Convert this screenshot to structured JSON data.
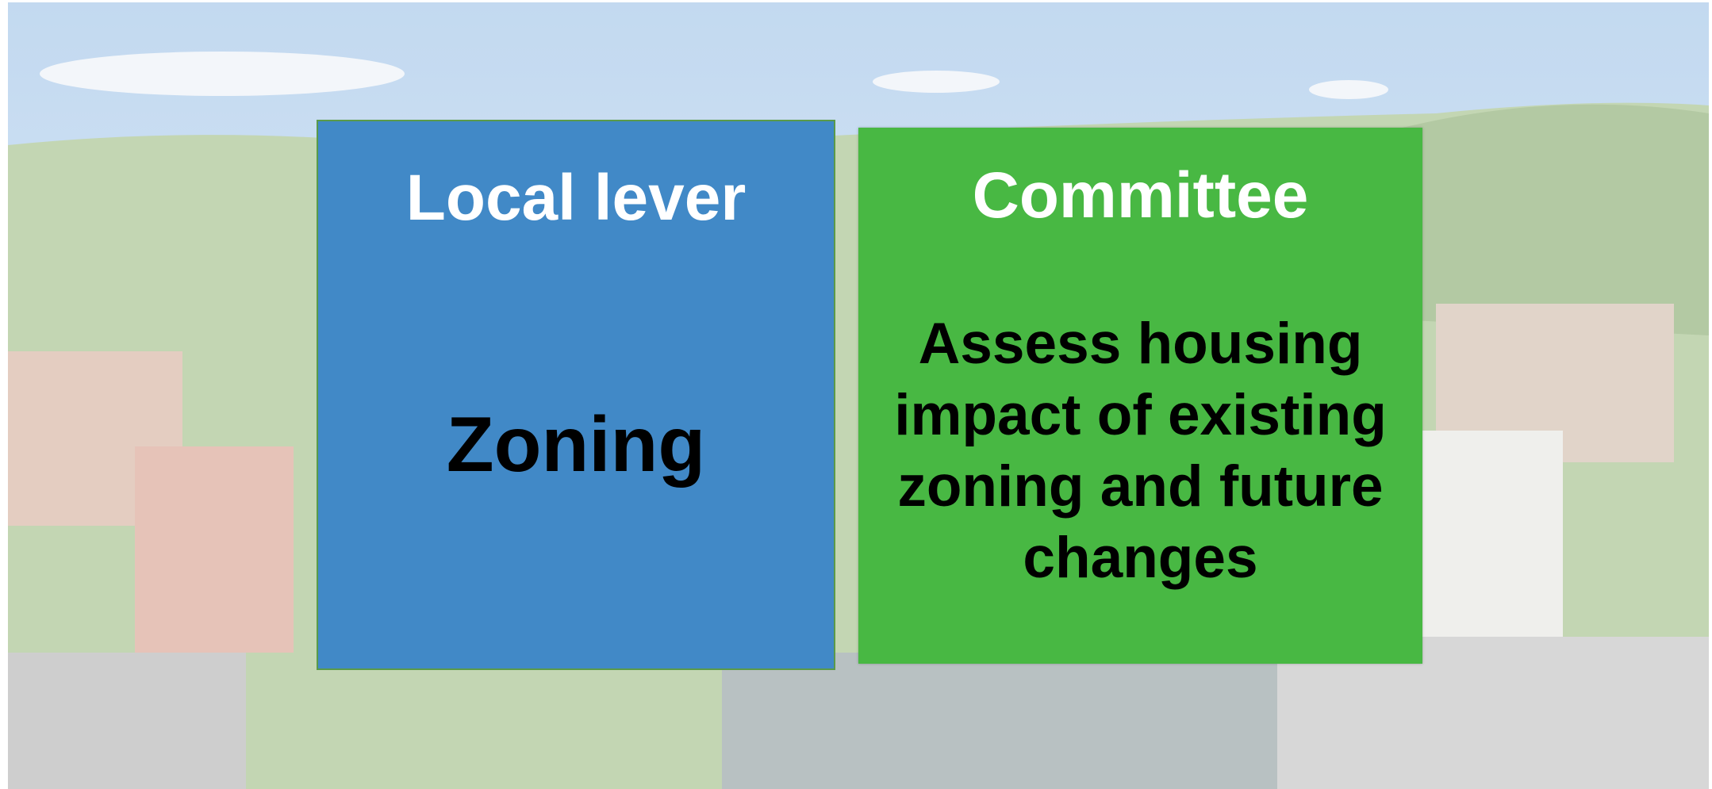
{
  "panels": [
    {
      "title": "Local lever",
      "body": "Zoning"
    },
    {
      "title": "Committee",
      "body": "Assess housing impact of existing zoning and future changes"
    }
  ]
}
